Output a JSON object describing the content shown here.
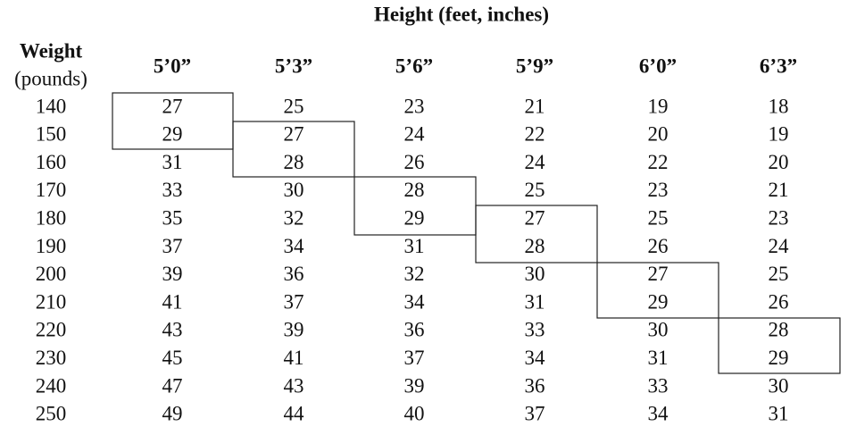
{
  "header": {
    "title": "Height (feet, inches)"
  },
  "table": {
    "corner": [
      "Weight",
      "(pounds)"
    ],
    "columns": [
      "5’0”",
      "5’3”",
      "5’6”",
      "5’9”",
      "6’0”",
      "6’3”"
    ],
    "rows": [
      [
        140,
        27,
        25,
        23,
        21,
        19,
        18
      ],
      [
        150,
        29,
        27,
        24,
        22,
        20,
        19
      ],
      [
        160,
        31,
        28,
        26,
        24,
        22,
        20
      ],
      [
        170,
        33,
        30,
        28,
        25,
        23,
        21
      ],
      [
        180,
        35,
        32,
        29,
        27,
        25,
        23
      ],
      [
        190,
        37,
        34,
        31,
        28,
        26,
        24
      ],
      [
        200,
        39,
        36,
        32,
        30,
        27,
        25
      ],
      [
        210,
        41,
        37,
        34,
        31,
        29,
        26
      ],
      [
        220,
        43,
        39,
        36,
        33,
        30,
        28
      ],
      [
        230,
        45,
        41,
        37,
        34,
        31,
        29
      ],
      [
        240,
        47,
        43,
        39,
        36,
        33,
        30
      ],
      [
        250,
        49,
        44,
        40,
        37,
        34,
        31
      ]
    ]
  }
}
